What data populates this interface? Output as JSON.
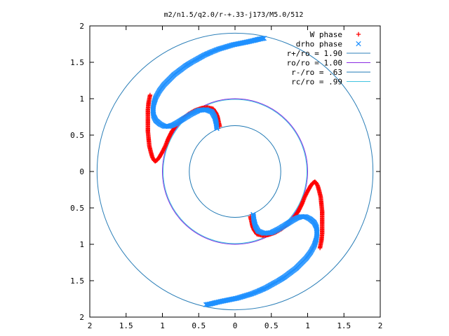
{
  "chart_data": {
    "type": "scatter",
    "title": "m2/n1.5/q2.0/r-+.33-j173/M5.0/512",
    "xlabel": "",
    "ylabel": "",
    "xlim": [
      -2,
      2
    ],
    "ylim": [
      -2,
      2
    ],
    "x_tick_labels": [
      "2",
      "1.5",
      "1",
      "0.5",
      "0",
      "0.5",
      "1",
      "1.5",
      "2"
    ],
    "y_tick_labels": [
      "2",
      "1.5",
      "1",
      "0.5",
      "0",
      "0.5",
      "1",
      "1.5",
      "2"
    ],
    "grid": false,
    "legend_position": "top-right",
    "series": [
      {
        "name": "W phase",
        "style": "plus",
        "color": "#ff0000",
        "x": [
          -1.17,
          -1.19,
          -1.2,
          -1.2,
          -1.2,
          -1.2,
          -1.19,
          -1.18,
          -1.16,
          -1.14,
          -1.12,
          -1.1,
          -1.07,
          -1.04,
          -1.0,
          -0.96,
          -0.92,
          -0.87,
          -0.8,
          -0.72,
          -0.64,
          -0.55,
          -0.46,
          -0.38,
          -0.3,
          -0.26,
          -0.24,
          -0.23,
          -0.22,
          -0.21,
          1.17,
          1.19,
          1.2,
          1.2,
          1.2,
          1.2,
          1.19,
          1.18,
          1.16,
          1.14,
          1.12,
          1.1,
          1.07,
          1.04,
          1.0,
          0.96,
          0.92,
          0.87,
          0.8,
          0.72,
          0.64,
          0.55,
          0.46,
          0.38,
          0.3,
          0.26,
          0.24,
          0.23,
          0.22,
          0.21
        ],
        "y": [
          1.05,
          0.95,
          0.85,
          0.75,
          0.65,
          0.55,
          0.45,
          0.35,
          0.27,
          0.2,
          0.16,
          0.14,
          0.16,
          0.2,
          0.27,
          0.35,
          0.45,
          0.55,
          0.65,
          0.73,
          0.79,
          0.84,
          0.87,
          0.88,
          0.86,
          0.8,
          0.75,
          0.7,
          0.66,
          0.62,
          -1.05,
          -0.95,
          -0.85,
          -0.75,
          -0.65,
          -0.55,
          -0.45,
          -0.35,
          -0.27,
          -0.2,
          -0.16,
          -0.14,
          -0.16,
          -0.2,
          -0.27,
          -0.35,
          -0.45,
          -0.55,
          -0.65,
          -0.73,
          -0.79,
          -0.84,
          -0.87,
          -0.88,
          -0.86,
          -0.8,
          -0.75,
          -0.7,
          -0.66,
          -0.62
        ]
      },
      {
        "name": "drho phase",
        "style": "cross",
        "color": "#1e90ff",
        "x": [
          0.4,
          0.34,
          0.26,
          0.17,
          0.07,
          -0.03,
          -0.13,
          -0.23,
          -0.33,
          -0.42,
          -0.51,
          -0.6,
          -0.68,
          -0.76,
          -0.84,
          -0.91,
          -0.98,
          -1.04,
          -1.09,
          -1.12,
          -1.13,
          -1.12,
          -1.09,
          -1.03,
          -0.97,
          -0.91,
          -0.85,
          -0.78,
          -0.7,
          -0.6,
          -0.5,
          -0.4,
          -0.32,
          -0.28,
          -0.26,
          -0.25,
          -0.4,
          -0.34,
          -0.26,
          -0.17,
          -0.07,
          0.03,
          0.13,
          0.23,
          0.33,
          0.42,
          0.51,
          0.6,
          0.68,
          0.76,
          0.84,
          0.91,
          0.98,
          1.04,
          1.09,
          1.12,
          1.13,
          1.12,
          1.09,
          1.03,
          0.97,
          0.91,
          0.85,
          0.78,
          0.7,
          0.6,
          0.5,
          0.4,
          0.32,
          0.28,
          0.26,
          0.25
        ],
        "y": [
          1.83,
          1.82,
          1.8,
          1.78,
          1.76,
          1.74,
          1.71,
          1.68,
          1.64,
          1.6,
          1.55,
          1.5,
          1.45,
          1.39,
          1.33,
          1.26,
          1.19,
          1.11,
          1.02,
          0.93,
          0.84,
          0.76,
          0.7,
          0.65,
          0.62,
          0.62,
          0.64,
          0.68,
          0.73,
          0.79,
          0.84,
          0.85,
          0.82,
          0.75,
          0.67,
          0.59,
          -1.83,
          -1.82,
          -1.8,
          -1.78,
          -1.76,
          -1.74,
          -1.71,
          -1.68,
          -1.64,
          -1.6,
          -1.55,
          -1.5,
          -1.45,
          -1.39,
          -1.33,
          -1.26,
          -1.19,
          -1.11,
          -1.02,
          -0.93,
          -0.84,
          -0.76,
          -0.7,
          -0.65,
          -0.62,
          -0.62,
          -0.64,
          -0.68,
          -0.73,
          -0.79,
          -0.84,
          -0.85,
          -0.82,
          -0.75,
          -0.67,
          -0.59
        ]
      }
    ],
    "circles": [
      {
        "name": "r+/ro = 1.90",
        "radius": 1.9,
        "color": "#2c7fb8"
      },
      {
        "name": "ro/ro = 1.00",
        "radius": 1.0,
        "color": "#8a2be2"
      },
      {
        "name": "r-/ro = .63",
        "radius": 0.63,
        "color": "#1f78b4"
      },
      {
        "name": "rc/ro = .99",
        "radius": 0.99,
        "color": "#40c4e0"
      }
    ]
  }
}
